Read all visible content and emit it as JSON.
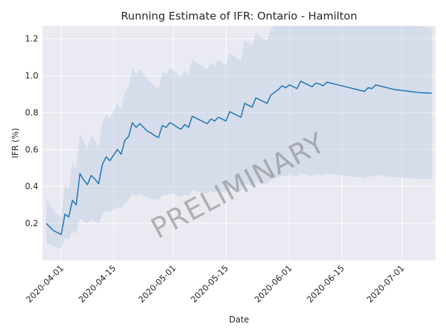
{
  "chart_data": {
    "type": "line",
    "title": "Running Estimate of IFR: Ontario - Hamilton",
    "xlabel": "Date",
    "ylabel": "IFR (%)",
    "watermark": "PRELIMINARY",
    "xlim": [
      "2020-03-27",
      "2020-07-10"
    ],
    "ylim": [
      0.0,
      1.27
    ],
    "x_ticks": [
      "2020-04-01",
      "2020-04-15",
      "2020-05-01",
      "2020-05-15",
      "2020-06-01",
      "2020-06-15",
      "2020-07-01"
    ],
    "y_ticks": [
      0.2,
      0.4,
      0.6,
      0.8,
      1.0,
      1.2
    ],
    "grid": true,
    "colors": {
      "background": "#eaeaf2",
      "grid": "#ffffff",
      "line": "#1f77b4",
      "band": "#b0c4de"
    },
    "series": [
      {
        "x": [
          "2020-03-28",
          "2020-03-29",
          "2020-03-30",
          "2020-03-31",
          "2020-04-01",
          "2020-04-02",
          "2020-04-03",
          "2020-04-04",
          "2020-04-05",
          "2020-04-06",
          "2020-04-07",
          "2020-04-08",
          "2020-04-09",
          "2020-04-10",
          "2020-04-11",
          "2020-04-12",
          "2020-04-13",
          "2020-04-14",
          "2020-04-15",
          "2020-04-16",
          "2020-04-17",
          "2020-04-18",
          "2020-04-19",
          "2020-04-20",
          "2020-04-21",
          "2020-04-22",
          "2020-04-23",
          "2020-04-24",
          "2020-04-25",
          "2020-04-26",
          "2020-04-27",
          "2020-04-28",
          "2020-04-29",
          "2020-04-30",
          "2020-05-01",
          "2020-05-02",
          "2020-05-03",
          "2020-05-04",
          "2020-05-05",
          "2020-05-06",
          "2020-05-07",
          "2020-05-08",
          "2020-05-09",
          "2020-05-10",
          "2020-05-11",
          "2020-05-12",
          "2020-05-13",
          "2020-05-14",
          "2020-05-15",
          "2020-05-16",
          "2020-05-17",
          "2020-05-18",
          "2020-05-19",
          "2020-05-20",
          "2020-05-21",
          "2020-05-22",
          "2020-05-23",
          "2020-05-24",
          "2020-05-25",
          "2020-05-26",
          "2020-05-27",
          "2020-05-28",
          "2020-05-29",
          "2020-05-30",
          "2020-05-31",
          "2020-06-01",
          "2020-06-02",
          "2020-06-03",
          "2020-06-04",
          "2020-06-05",
          "2020-06-06",
          "2020-06-07",
          "2020-06-08",
          "2020-06-09",
          "2020-06-10",
          "2020-06-11",
          "2020-06-13",
          "2020-06-15",
          "2020-06-17",
          "2020-06-19",
          "2020-06-21",
          "2020-06-22",
          "2020-06-23",
          "2020-06-24",
          "2020-06-25",
          "2020-06-27",
          "2020-06-29",
          "2020-07-01",
          "2020-07-03",
          "2020-07-05",
          "2020-07-07",
          "2020-07-09"
        ],
        "y": [
          0.2,
          0.18,
          0.16,
          0.15,
          0.14,
          0.25,
          0.235,
          0.325,
          0.3,
          0.47,
          0.435,
          0.41,
          0.46,
          0.44,
          0.415,
          0.52,
          0.56,
          0.54,
          0.57,
          0.6,
          0.575,
          0.65,
          0.67,
          0.745,
          0.72,
          0.74,
          0.72,
          0.7,
          0.69,
          0.675,
          0.665,
          0.73,
          0.72,
          0.745,
          0.735,
          0.72,
          0.71,
          0.735,
          0.72,
          0.78,
          0.77,
          0.76,
          0.75,
          0.74,
          0.765,
          0.755,
          0.775,
          0.765,
          0.755,
          0.805,
          0.795,
          0.785,
          0.775,
          0.85,
          0.84,
          0.83,
          0.88,
          0.87,
          0.86,
          0.85,
          0.895,
          0.91,
          0.925,
          0.945,
          0.935,
          0.95,
          0.94,
          0.93,
          0.97,
          0.96,
          0.95,
          0.94,
          0.96,
          0.955,
          0.945,
          0.965,
          0.955,
          0.945,
          0.935,
          0.925,
          0.915,
          0.935,
          0.93,
          0.95,
          0.945,
          0.935,
          0.925,
          0.92,
          0.915,
          0.91,
          0.907,
          0.905
        ],
        "lower": [
          0.095,
          0.085,
          0.078,
          0.07,
          0.065,
          0.12,
          0.11,
          0.155,
          0.145,
          0.225,
          0.21,
          0.2,
          0.22,
          0.21,
          0.2,
          0.25,
          0.27,
          0.26,
          0.275,
          0.29,
          0.28,
          0.31,
          0.325,
          0.36,
          0.35,
          0.36,
          0.35,
          0.34,
          0.335,
          0.33,
          0.325,
          0.355,
          0.35,
          0.362,
          0.358,
          0.35,
          0.345,
          0.358,
          0.35,
          0.38,
          0.375,
          0.37,
          0.365,
          0.36,
          0.372,
          0.368,
          0.378,
          0.372,
          0.368,
          0.392,
          0.387,
          0.382,
          0.377,
          0.414,
          0.409,
          0.404,
          0.428,
          0.423,
          0.418,
          0.414,
          0.436,
          0.443,
          0.45,
          0.46,
          0.455,
          0.462,
          0.457,
          0.453,
          0.472,
          0.467,
          0.462,
          0.457,
          0.467,
          0.465,
          0.46,
          0.47,
          0.465,
          0.46,
          0.455,
          0.45,
          0.445,
          0.455,
          0.452,
          0.462,
          0.46,
          0.455,
          0.45,
          0.448,
          0.445,
          0.443,
          0.441,
          0.44
        ],
        "upper": [
          0.33,
          0.3,
          0.27,
          0.25,
          0.235,
          0.41,
          0.385,
          0.53,
          0.49,
          0.69,
          0.64,
          0.605,
          0.68,
          0.65,
          0.61,
          0.75,
          0.79,
          0.765,
          0.81,
          0.85,
          0.815,
          0.91,
          0.94,
          1.04,
          1.01,
          1.035,
          1.01,
          0.98,
          0.965,
          0.945,
          0.93,
          1.02,
          1.005,
          1.04,
          1.03,
          1.01,
          0.995,
          1.03,
          1.005,
          1.09,
          1.075,
          1.06,
          1.045,
          1.035,
          1.07,
          1.055,
          1.085,
          1.07,
          1.055,
          1.125,
          1.11,
          1.095,
          1.08,
          1.19,
          1.175,
          1.16,
          1.23,
          1.215,
          1.2,
          1.19,
          1.25,
          1.27,
          1.29,
          1.32,
          1.305,
          1.325,
          1.31,
          1.3,
          1.355,
          1.34,
          1.325,
          1.31,
          1.34,
          1.335,
          1.32,
          1.345,
          1.335,
          1.32,
          1.305,
          1.29,
          1.28,
          1.305,
          1.3,
          1.325,
          1.32,
          1.305,
          1.29,
          1.285,
          1.28,
          1.27,
          1.265,
          1.26
        ]
      }
    ]
  }
}
